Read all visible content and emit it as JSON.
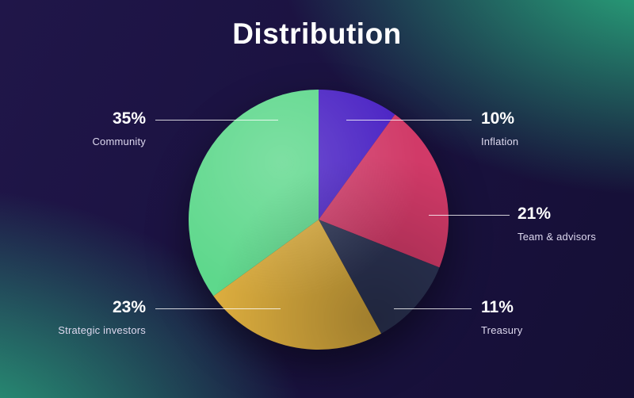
{
  "page": {
    "title": "Distribution"
  },
  "theme": {
    "background_navy": "#1a1240",
    "accent_green": "#2cc488",
    "callout_line_color": "#ffffff",
    "text_primary": "#ffffff",
    "text_secondary": "#ded9ef"
  },
  "chart_data": {
    "type": "pie",
    "title": "Distribution",
    "direction": "clockwise",
    "start_angle": "12 o'clock",
    "legend_position": "callout-labels",
    "total": 100,
    "slices": [
      {
        "label": "Inflation",
        "value": 10,
        "pct_label": "10%",
        "color": "#4a22c4",
        "callout_side": "right"
      },
      {
        "label": "Team & advisors",
        "value": 21,
        "pct_label": "21%",
        "color": "#d13a68",
        "callout_side": "right"
      },
      {
        "label": "Treasury",
        "value": 11,
        "pct_label": "11%",
        "color": "#2d3556",
        "callout_side": "right"
      },
      {
        "label": "Strategic investors",
        "value": 23,
        "pct_label": "23%",
        "color": "#ddae3f",
        "callout_side": "left"
      },
      {
        "label": "Community",
        "value": 35,
        "pct_label": "35%",
        "color": "#5ed88c",
        "callout_side": "left"
      }
    ]
  }
}
